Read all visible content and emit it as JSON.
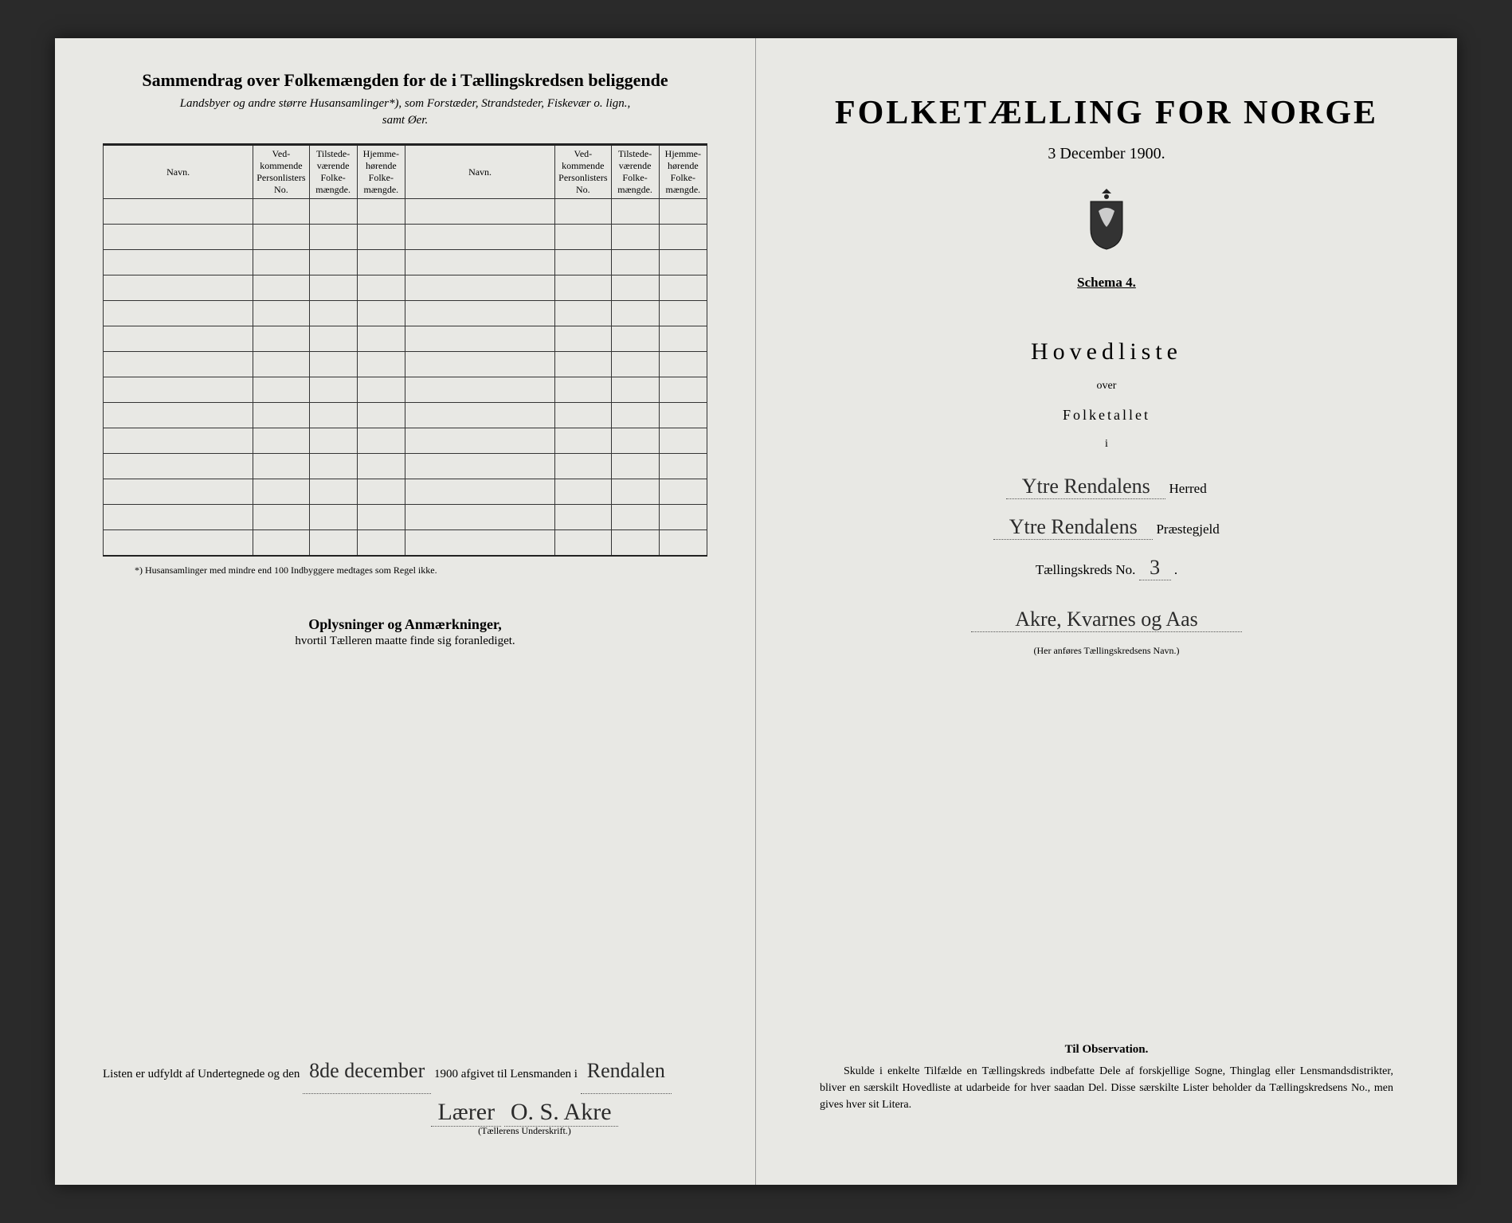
{
  "left": {
    "summary_title": "Sammendrag over Folkemængden for de i Tællingskredsen beliggende",
    "summary_sub_1": "Landsbyer og andre større Husansamlinger*), som Forstæder, Strandsteder, Fiskevær o. lign.,",
    "summary_sub_2": "samt Øer.",
    "col_navn": "Navn.",
    "col_list": "Ved-kommende Personlisters No.",
    "col_tilstede": "Tilstede-værende Folke-mængde.",
    "col_hjemme": "Hjemme-hørende Folke-mængde.",
    "footnote": "*)  Husansamlinger med mindre end 100 Indbyggere medtages som Regel ikke.",
    "oplys_title": "Oplysninger og Anmærkninger,",
    "oplys_sub": "hvortil Tælleren maatte finde sig foranlediget.",
    "sign_pre": "Listen er udfyldt af Undertegnede og den",
    "sign_date": "8de december",
    "sign_year": "1900 afgivet til Lensmanden i",
    "sign_place": "Rendalen",
    "sign_role": "Lærer",
    "sign_name": "O. S. Akre",
    "sign_caption": "(Tællerens Underskrift.)"
  },
  "right": {
    "main_title": "FOLKETÆLLING FOR NORGE",
    "date": "3 December 1900.",
    "schema": "Schema 4.",
    "hoved": "Hovedliste",
    "over": "over",
    "folketal": "Folketallet",
    "i": "i",
    "herred_hand": "Ytre Rendalens",
    "herred_label": "Herred",
    "prgjeld_hand": "Ytre Rendalens",
    "prgjeld_label": "Præstegjeld",
    "kreds_label_pre": "Tællingskreds No.",
    "kreds_no": "3",
    "kreds_name": "Akre, Kvarnes og Aas",
    "kreds_caption": "(Her anføres Tællingskredsens Navn.)",
    "obs_title": "Til Observation.",
    "obs_text": "Skulde i enkelte Tilfælde en Tællingskreds indbefatte Dele af forskjellige Sogne, Thinglag eller Lensmandsdistrikter, bliver en særskilt Hovedliste at udarbeide for hver saadan Del. Disse særskilte Lister beholder da Tællingskredsens No., men gives hver sit Litera."
  },
  "table": {
    "blank_rows": 14
  },
  "colors": {
    "paper": "#e8e8e4",
    "ink": "#222222",
    "bg": "#2a2a2a"
  }
}
